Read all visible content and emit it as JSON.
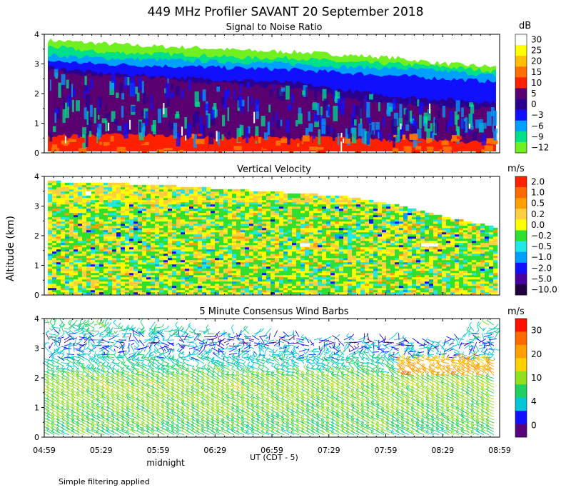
{
  "figure": {
    "title": "449 MHz Profiler SAVANT 20 September 2018",
    "ylabel": "Altitude (km)",
    "xlabel": "UT  (CDT - 5)",
    "midnight_label": "midnight",
    "footnote": "Simple filtering applied"
  },
  "chart_data": [
    {
      "type": "heatmap",
      "title": "Signal to Noise Ratio",
      "unit": "dB",
      "ylim": [
        0,
        4
      ],
      "y_ticks": [
        "0",
        "1",
        "2",
        "3",
        "4"
      ],
      "x_ticks": [
        "04:59",
        "05:29",
        "05:59",
        "06:29",
        "06:59",
        "07:29",
        "07:59",
        "08:29",
        "08:59"
      ],
      "colorbar": {
        "labels": [
          "30",
          "25",
          "20",
          "15",
          "10",
          "5",
          "0",
          "−3",
          "−6",
          "−9",
          "−12"
        ],
        "colors": [
          "#ffffff",
          "#ffff00",
          "#ffbf00",
          "#ff7000",
          "#ff2000",
          "#5a0070",
          "#2a0090",
          "#1010ff",
          "#00a0ff",
          "#00e08a",
          "#70f020"
        ]
      },
      "layers": [
        {
          "value": "-12",
          "top_km": [
            3.8,
            3.7,
            3.6,
            3.55,
            3.45,
            3.4,
            3.3,
            3.2,
            3.0,
            2.9
          ]
        },
        {
          "value": "-9",
          "top_km": [
            3.6,
            3.4,
            3.35,
            3.3,
            3.2,
            3.2,
            3.05,
            3.0,
            2.9,
            2.75
          ]
        },
        {
          "value": "-6",
          "top_km": [
            3.3,
            3.2,
            3.15,
            3.1,
            3.05,
            3.0,
            2.9,
            2.85,
            2.75,
            2.6
          ]
        },
        {
          "value": "-3",
          "top_km": [
            3.1,
            3.0,
            2.95,
            2.9,
            2.85,
            2.8,
            2.7,
            2.6,
            2.5,
            2.4
          ]
        },
        {
          "value": "0",
          "top_km": [
            2.9,
            2.7,
            2.6,
            2.5,
            2.45,
            2.35,
            2.1,
            1.9,
            1.8,
            1.7
          ]
        },
        {
          "value": "5",
          "top_km": [
            2.8,
            2.6,
            2.55,
            2.4,
            2.3,
            2.2,
            1.85,
            1.65,
            1.55,
            1.5
          ]
        },
        {
          "value": "10",
          "top_km": [
            0.55,
            0.6,
            0.6,
            0.5,
            0.5,
            0.5,
            0.5,
            0.45,
            0.4,
            0.35
          ]
        }
      ]
    },
    {
      "type": "heatmap",
      "title": "Vertical Velocity",
      "unit": "m/s",
      "ylim": [
        0,
        4
      ],
      "y_ticks": [
        "0",
        "1",
        "2",
        "3",
        "4"
      ],
      "colorbar": {
        "labels": [
          "2.0",
          "1.0",
          "0.5",
          "0.2",
          "0.0",
          "−0.2",
          "−0.5",
          "−1.0",
          "−2.0",
          "−5.0",
          "−10.0"
        ],
        "colors": [
          "#ff2000",
          "#ff6a00",
          "#ffa000",
          "#ffcf40",
          "#ffff00",
          "#30e030",
          "#20e8e8",
          "#00a0ff",
          "#1010ff",
          "#4a00a0",
          "#200040"
        ]
      },
      "data_top_km": [
        3.8,
        3.75,
        3.7,
        3.6,
        3.5,
        3.4,
        3.3,
        3.0,
        2.6,
        2.25
      ]
    },
    {
      "type": "wind-barbs",
      "title": "5 Minute Consensus Wind Barbs",
      "unit": "m/s",
      "ylim": [
        0,
        4
      ],
      "y_ticks": [
        "0",
        "1",
        "2",
        "3",
        "4"
      ],
      "colorbar": {
        "labels": [
          "30",
          "20",
          "10",
          "4",
          "0"
        ],
        "colors": [
          "#ff1000",
          "#ff6a00",
          "#ffa000",
          "#ffd000",
          "#90e020",
          "#20d060",
          "#00c8d8",
          "#1010ff",
          "#5a007a"
        ]
      },
      "data_top_km": [
        3.9,
        3.8,
        3.7,
        3.6,
        3.5,
        3.4,
        3.3,
        3.3,
        3.2,
        3.9
      ],
      "speed_profile_ms": [
        {
          "alt_km": 0.2,
          "speed": 9
        },
        {
          "alt_km": 1.0,
          "speed": 11
        },
        {
          "alt_km": 1.8,
          "speed": 12
        },
        {
          "alt_km": 2.4,
          "speed": 7
        },
        {
          "alt_km": 3.2,
          "speed": 3
        },
        {
          "alt_km": 3.8,
          "speed": 9
        }
      ]
    }
  ]
}
